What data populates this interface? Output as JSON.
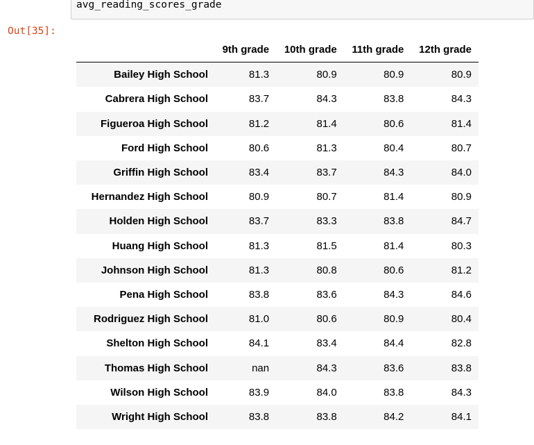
{
  "cell": {
    "input_code": "avg_reading_scores_grade",
    "out_prompt": "Out[35]:"
  },
  "table": {
    "columns": [
      "9th grade",
      "10th grade",
      "11th grade",
      "12th grade"
    ],
    "rows": [
      {
        "school": "Bailey High School",
        "values": [
          "81.3",
          "80.9",
          "80.9",
          "80.9"
        ]
      },
      {
        "school": "Cabrera High School",
        "values": [
          "83.7",
          "84.3",
          "83.8",
          "84.3"
        ]
      },
      {
        "school": "Figueroa High School",
        "values": [
          "81.2",
          "81.4",
          "80.6",
          "81.4"
        ]
      },
      {
        "school": "Ford High School",
        "values": [
          "80.6",
          "81.3",
          "80.4",
          "80.7"
        ]
      },
      {
        "school": "Griffin High School",
        "values": [
          "83.4",
          "83.7",
          "84.3",
          "84.0"
        ]
      },
      {
        "school": "Hernandez High School",
        "values": [
          "80.9",
          "80.7",
          "81.4",
          "80.9"
        ]
      },
      {
        "school": "Holden High School",
        "values": [
          "83.7",
          "83.3",
          "83.8",
          "84.7"
        ]
      },
      {
        "school": "Huang High School",
        "values": [
          "81.3",
          "81.5",
          "81.4",
          "80.3"
        ]
      },
      {
        "school": "Johnson High School",
        "values": [
          "81.3",
          "80.8",
          "80.6",
          "81.2"
        ]
      },
      {
        "school": "Pena High School",
        "values": [
          "83.8",
          "83.6",
          "84.3",
          "84.6"
        ]
      },
      {
        "school": "Rodriguez High School",
        "values": [
          "81.0",
          "80.6",
          "80.9",
          "80.4"
        ]
      },
      {
        "school": "Shelton High School",
        "values": [
          "84.1",
          "83.4",
          "84.4",
          "82.8"
        ]
      },
      {
        "school": "Thomas High School",
        "values": [
          "nan",
          "84.3",
          "83.6",
          "83.8"
        ]
      },
      {
        "school": "Wilson High School",
        "values": [
          "83.9",
          "84.0",
          "83.8",
          "84.3"
        ]
      },
      {
        "school": "Wright High School",
        "values": [
          "83.8",
          "83.8",
          "84.2",
          "84.1"
        ]
      }
    ]
  }
}
